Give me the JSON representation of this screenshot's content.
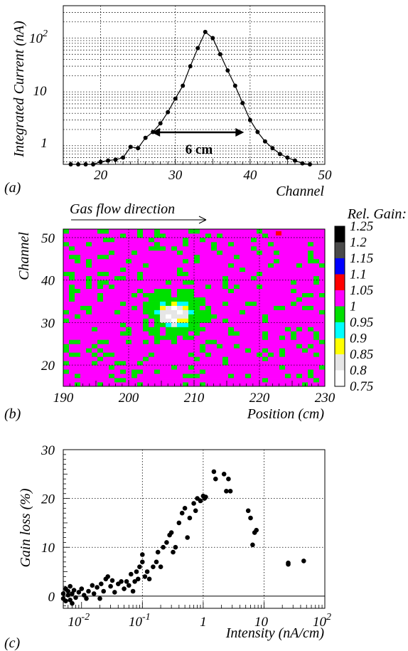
{
  "figure": {
    "panel_labels": [
      "(a)",
      "(b)",
      "(c)"
    ]
  },
  "chart_data": [
    {
      "type": "line",
      "panel": "(a)",
      "xlabel": "Channel",
      "ylabel": "Integrated Current (nA)",
      "x_ticks": [
        "20",
        "30",
        "40",
        "50"
      ],
      "y_ticks": [
        "1",
        "10",
        "10 2"
      ],
      "xlim": [
        15,
        50
      ],
      "ylim": [
        0.45,
        400
      ],
      "y_scale": "log",
      "grid": true,
      "annotation": "6 cm",
      "x": [
        16,
        17,
        18,
        19,
        20,
        21,
        22,
        23,
        24,
        25,
        26,
        27,
        28,
        29,
        30,
        31,
        32,
        33,
        34,
        35,
        36,
        37,
        38,
        39,
        40,
        41,
        42,
        43,
        44,
        45,
        46,
        47,
        48
      ],
      "y": [
        0.4,
        0.4,
        0.4,
        0.45,
        0.5,
        0.53,
        0.55,
        0.6,
        0.95,
        0.9,
        1.4,
        1.8,
        2.6,
        4.2,
        7.5,
        13,
        30,
        65,
        130,
        100,
        50,
        25,
        13,
        6.2,
        3.0,
        1.8,
        1.2,
        0.9,
        0.7,
        0.6,
        0.53,
        0.47,
        0.42
      ]
    },
    {
      "type": "heatmap",
      "panel": "(b)",
      "title": "Gas flow direction",
      "xlabel": "Position (cm)",
      "ylabel": "Channel",
      "x_ticks": [
        "190",
        "200",
        "210",
        "220",
        "230"
      ],
      "y_ticks": [
        "20",
        "30",
        "40",
        "50"
      ],
      "xlim": [
        190,
        230
      ],
      "ylim": [
        15,
        52
      ],
      "grid": true,
      "legend_title": "Rel. Gain:",
      "legend_labels": [
        "1.25",
        "1.2",
        "1.15",
        "1.1",
        "1.05",
        "1",
        "0.95",
        "0.9",
        "0.85",
        "0.8",
        "0.75"
      ],
      "legend_colors": [
        "#000000",
        "#4a4a4a",
        "#0000ff",
        "#ff0000",
        "#ff00ff",
        "#00e000",
        "#00ffff",
        "#ffff00",
        "#e6e6e6",
        "#ffffff"
      ],
      "hot_spot": {
        "center_position": 207,
        "center_channel": 32,
        "min_gain": 0.8
      }
    },
    {
      "type": "scatter",
      "panel": "(c)",
      "xlabel": "Intensity (nA/cm)",
      "ylabel": "Gain loss (%)",
      "x_ticks": [
        "10 -2",
        "10 -1",
        "1",
        "10",
        "10 2"
      ],
      "y_ticks": [
        "0",
        "10",
        "20",
        "30"
      ],
      "xlim": [
        0.005,
        100
      ],
      "ylim": [
        -2.5,
        30
      ],
      "x_scale": "log",
      "grid": true,
      "points": [
        [
          0.005,
          0.5
        ],
        [
          0.005,
          -0.5
        ],
        [
          0.0055,
          1.5
        ],
        [
          0.0055,
          -1
        ],
        [
          0.006,
          0.2
        ],
        [
          0.006,
          1
        ],
        [
          0.0065,
          -0.8
        ],
        [
          0.0065,
          2
        ],
        [
          0.007,
          0.5
        ],
        [
          0.007,
          -1.5
        ],
        [
          0.0075,
          1.2
        ],
        [
          0.008,
          -0.3
        ],
        [
          0.009,
          0.8
        ],
        [
          0.01,
          1.5
        ],
        [
          0.011,
          0.2
        ],
        [
          0.012,
          -0.5
        ],
        [
          0.013,
          1
        ],
        [
          0.015,
          2.2
        ],
        [
          0.016,
          0.5
        ],
        [
          0.018,
          1.8
        ],
        [
          0.02,
          -0.5
        ],
        [
          0.021,
          2.5
        ],
        [
          0.023,
          1
        ],
        [
          0.025,
          3.5
        ],
        [
          0.027,
          4
        ],
        [
          0.03,
          2
        ],
        [
          0.032,
          3.2
        ],
        [
          0.035,
          0.8
        ],
        [
          0.04,
          2.5
        ],
        [
          0.045,
          3
        ],
        [
          0.05,
          1.5
        ],
        [
          0.055,
          3
        ],
        [
          0.06,
          2.2
        ],
        [
          0.065,
          4.5
        ],
        [
          0.07,
          1
        ],
        [
          0.075,
          3
        ],
        [
          0.08,
          5
        ],
        [
          0.085,
          3.5
        ],
        [
          0.09,
          6
        ],
        [
          0.1,
          7
        ],
        [
          0.1,
          8.5
        ],
        [
          0.11,
          4
        ],
        [
          0.12,
          5
        ],
        [
          0.13,
          3.5
        ],
        [
          0.15,
          6
        ],
        [
          0.17,
          7
        ],
        [
          0.18,
          9
        ],
        [
          0.2,
          6
        ],
        [
          0.22,
          10
        ],
        [
          0.25,
          11
        ],
        [
          0.28,
          12.5
        ],
        [
          0.3,
          13
        ],
        [
          0.32,
          9
        ],
        [
          0.35,
          10
        ],
        [
          0.4,
          15
        ],
        [
          0.45,
          17
        ],
        [
          0.5,
          18
        ],
        [
          0.55,
          12
        ],
        [
          0.6,
          16
        ],
        [
          0.7,
          19
        ],
        [
          0.75,
          17.5
        ],
        [
          0.8,
          20
        ],
        [
          0.9,
          19.5
        ],
        [
          1.0,
          20.5
        ],
        [
          1.05,
          20
        ],
        [
          1.1,
          20.3
        ],
        [
          1.5,
          25.5
        ],
        [
          1.6,
          24
        ],
        [
          2.2,
          25
        ],
        [
          2.4,
          21.5
        ],
        [
          2.6,
          24
        ],
        [
          2.8,
          21.5
        ],
        [
          5.5,
          17.5
        ],
        [
          6,
          16
        ],
        [
          6.5,
          10.5
        ],
        [
          7,
          13
        ],
        [
          7.5,
          13.5
        ],
        [
          25,
          6.8
        ],
        [
          25,
          6.5
        ],
        [
          45,
          7.2
        ]
      ]
    }
  ]
}
